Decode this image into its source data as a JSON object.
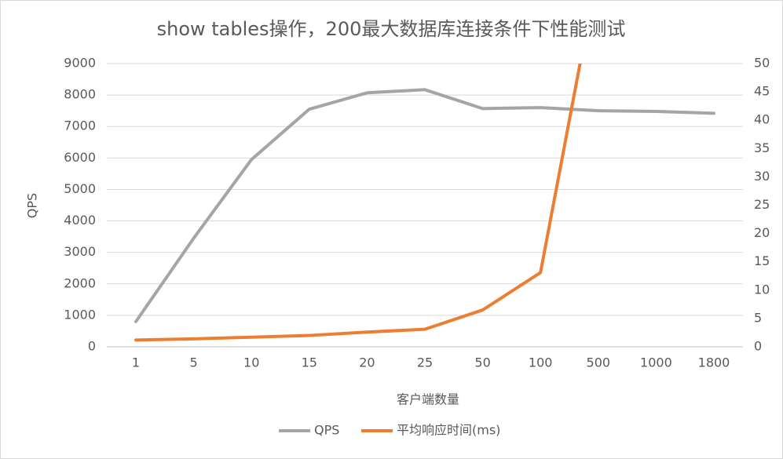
{
  "chart_data": {
    "type": "line",
    "title": "show tables操作，200最大数据库连接条件下性能测试",
    "x_label": "客户端数量",
    "y_label": "QPS",
    "categories": [
      "1",
      "5",
      "10",
      "15",
      "20",
      "25",
      "50",
      "100",
      "500",
      "1000",
      "1800"
    ],
    "series": [
      {
        "name": "QPS",
        "color": "#a5a5a5",
        "values": [
          800,
          3450,
          5950,
          7550,
          8070,
          8170,
          7570,
          7600,
          7500,
          7480,
          7420
        ]
      },
      {
        "name": "平均响应时间(ms)",
        "color": "#ed7d31",
        "axis": "y2",
        "values": [
          1.2,
          1.4,
          1.7,
          2.0,
          2.6,
          3.1,
          6.5,
          13.1,
          67,
          null,
          null
        ]
      }
    ],
    "ylim": [
      0,
      9000
    ],
    "yticks": [
      0,
      1000,
      2000,
      3000,
      4000,
      5000,
      6000,
      7000,
      8000,
      9000
    ],
    "y2lim": [
      0,
      50
    ],
    "y2ticks": [
      0,
      5,
      10,
      15,
      20,
      25,
      30,
      35,
      40,
      45,
      50
    ],
    "grid": true,
    "legend": "bottom"
  }
}
